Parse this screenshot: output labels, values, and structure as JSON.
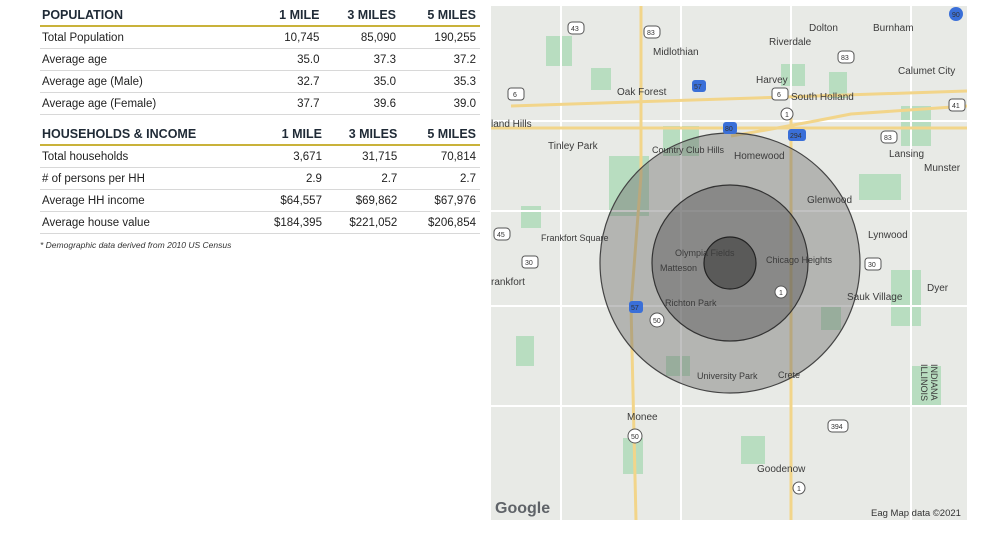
{
  "population": {
    "header": [
      "POPULATION",
      "1 MILE",
      "3 MILES",
      "5 MILES"
    ],
    "rows": [
      [
        "Total Population",
        "10,745",
        "85,090",
        "190,255"
      ],
      [
        "Average age",
        "35.0",
        "37.3",
        "37.2"
      ],
      [
        "Average age (Male)",
        "32.7",
        "35.0",
        "35.3"
      ],
      [
        "Average age (Female)",
        "37.7",
        "39.6",
        "39.0"
      ]
    ]
  },
  "households": {
    "header": [
      "HOUSEHOLDS & INCOME",
      "1 MILE",
      "3 MILES",
      "5 MILES"
    ],
    "rows": [
      [
        "Total households",
        "3,671",
        "31,715",
        "70,814"
      ],
      [
        "# of persons per HH",
        "2.9",
        "2.7",
        "2.7"
      ],
      [
        "Average HH income",
        "$64,557",
        "$69,862",
        "$67,976"
      ],
      [
        "Average house value",
        "$184,395",
        "$221,052",
        "$206,854"
      ]
    ]
  },
  "footnote": "* Demographic data derived from 2010 US Census",
  "map": {
    "places": [
      "Dolton",
      "Burnham",
      "Riverdale",
      "Midlothian",
      "Calumet City",
      "Harvey",
      "Oak Forest",
      "South Holland",
      "land Hills",
      "Tinley Park",
      "Country Club Hills",
      "Homewood",
      "Lansing",
      "Munster",
      "Glenwood",
      "Frankfort Square",
      "Lynwood",
      "Olympia Fields",
      "Matteson",
      "Chicago Heights",
      "rankfort",
      "Dyer",
      "Richton Park",
      "Sauk Village",
      "University Park",
      "Crete",
      "Monee",
      "Goodenow",
      "INDIANA",
      "ILLINOIS"
    ],
    "routes": [
      "90",
      "43",
      "83",
      "83",
      "57",
      "6",
      "6",
      "1",
      "41",
      "80",
      "294",
      "83",
      "45",
      "30",
      "30",
      "57",
      "50",
      "1",
      "394",
      "50",
      "1"
    ],
    "attribution": "Eag Map data ©2021",
    "logo": "Google",
    "colors": {
      "base": "#e8eae6",
      "park": "#b8ddc0",
      "road": "#ffffff",
      "highway": "#f2d58a",
      "ring": "#6b6b6b"
    }
  }
}
